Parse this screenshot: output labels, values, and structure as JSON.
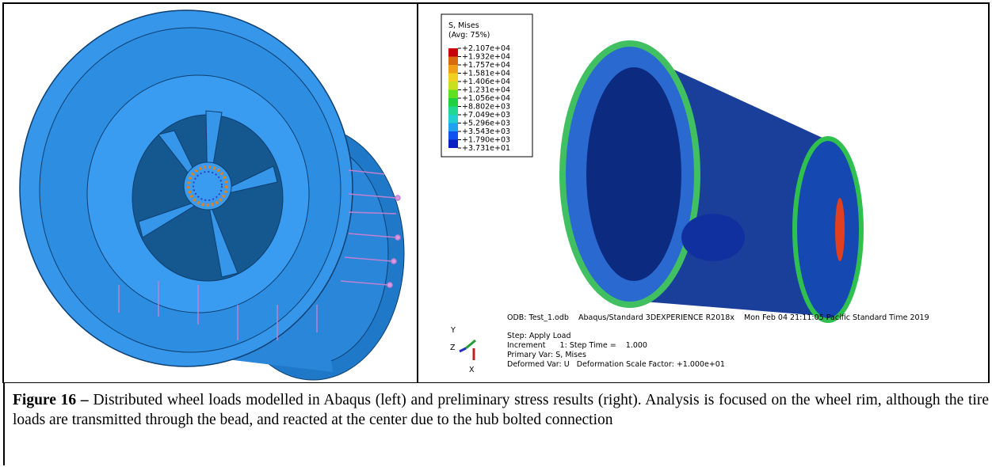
{
  "right_panel": {
    "legend": {
      "title": "S, Mises",
      "subtitle": "(Avg: 75%)",
      "values": [
        "+2.107e+04",
        "+1.932e+04",
        "+1.757e+04",
        "+1.581e+04",
        "+1.406e+04",
        "+1.231e+04",
        "+1.056e+04",
        "+8.802e+03",
        "+7.049e+03",
        "+5.296e+03",
        "+3.543e+03",
        "+1.790e+03",
        "+3.731e+01"
      ]
    },
    "odb_line": "ODB: Test_1.odb    Abaqus/Standard 3DEXPERIENCE R2018x    Mon Feb 04 21:11:05 Pacific Standard Time 2019",
    "status": [
      "Step: Apply Load",
      "Increment      1: Step Time =    1.000",
      "Primary Var: S, Mises",
      "Deformed Var: U   Deformation Scale Factor: +1.000e+01"
    ],
    "axes": {
      "y": "Y",
      "z": "Z",
      "x": "X"
    }
  },
  "caption": {
    "label": "Figure 16 –",
    "text": " Distributed wheel loads modelled in Abaqus (left) and preliminary stress results (right). Analysis is focused on the wheel rim, although the tire loads are transmitted through the bead, and reacted at the center due to the hub bolted connection"
  }
}
